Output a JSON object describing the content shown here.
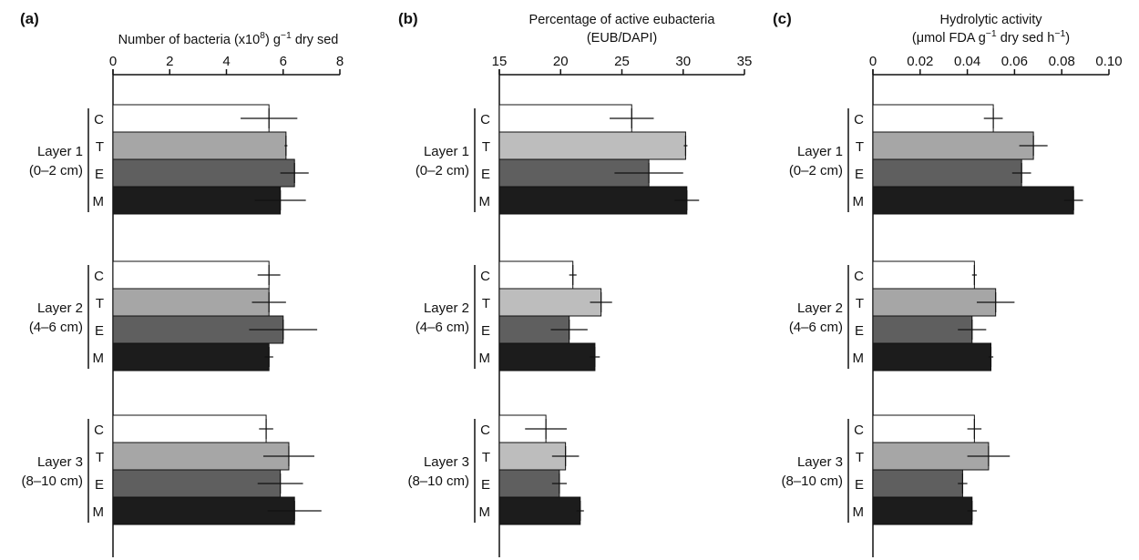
{
  "figure": {
    "layer_labels": [
      [
        "Layer 1",
        "(0–2 cm)"
      ],
      [
        "Layer 2",
        "(4–6 cm)"
      ],
      [
        "Layer 3",
        "(8–10 cm)"
      ]
    ],
    "treatments": [
      "C",
      "T",
      "E",
      "M"
    ],
    "treatment_colors": {
      "C": "#ffffff",
      "T": "#a6a6a6",
      "E": "#5f5f5f",
      "M": "#1c1c1c"
    },
    "treatment_colors_b": {
      "C": "#ffffff",
      "T": "#bdbdbd",
      "E": "#5f5f5f",
      "M": "#1c1c1c"
    }
  },
  "chart_data": [
    {
      "type": "bar",
      "orientation": "horizontal",
      "panel_label": "(a)",
      "title_lines": [
        "Number of bacteria (x10^8) g^−1 dry sed"
      ],
      "xlim": [
        0,
        8
      ],
      "ticks": [
        0,
        2,
        4,
        6,
        8
      ],
      "categories": [
        "Layer 1 C",
        "Layer 1 T",
        "Layer 1 E",
        "Layer 1 M",
        "Layer 2 C",
        "Layer 2 T",
        "Layer 2 E",
        "Layer 2 M",
        "Layer 3 C",
        "Layer 3 T",
        "Layer 3 E",
        "Layer 3 M"
      ],
      "values": [
        5.5,
        6.1,
        6.4,
        5.9,
        5.5,
        5.5,
        6.0,
        5.5,
        5.4,
        6.2,
        5.9,
        6.4
      ],
      "errors": [
        1.0,
        0.05,
        0.5,
        0.9,
        0.4,
        0.6,
        1.2,
        0.15,
        0.25,
        0.9,
        0.8,
        0.95
      ]
    },
    {
      "type": "bar",
      "orientation": "horizontal",
      "panel_label": "(b)",
      "title_lines": [
        "Percentage of active eubacteria",
        "(EUB/DAPI)"
      ],
      "xlim": [
        15,
        35
      ],
      "ticks": [
        15,
        20,
        25,
        30,
        35
      ],
      "categories": [
        "Layer 1 C",
        "Layer 1 T",
        "Layer 1 E",
        "Layer 1 M",
        "Layer 2 C",
        "Layer 2 T",
        "Layer 2 E",
        "Layer 2 M",
        "Layer 3 C",
        "Layer 3 T",
        "Layer 3 E",
        "Layer 3 M"
      ],
      "values": [
        25.8,
        30.2,
        27.2,
        30.3,
        21.0,
        23.3,
        20.7,
        22.8,
        18.8,
        20.4,
        19.9,
        21.6
      ],
      "errors": [
        1.8,
        0.15,
        2.8,
        1.0,
        0.3,
        0.9,
        1.5,
        0.4,
        1.7,
        1.1,
        0.6,
        0.3
      ]
    },
    {
      "type": "bar",
      "orientation": "horizontal",
      "panel_label": "(c)",
      "title_lines": [
        "Hydrolytic activity",
        "(μmol FDA g^−1 dry sed h^−1)"
      ],
      "xlim": [
        0,
        0.1
      ],
      "ticks": [
        0,
        0.02,
        0.04,
        0.06,
        0.08,
        0.1
      ],
      "tick_labels": [
        "0",
        "0.02",
        "0.04",
        "0.06",
        "0.08",
        "0.10"
      ],
      "categories": [
        "Layer 1 C",
        "Layer 1 T",
        "Layer 1 E",
        "Layer 1 M",
        "Layer 2 C",
        "Layer 2 T",
        "Layer 2 E",
        "Layer 2 M",
        "Layer 3 C",
        "Layer 3 T",
        "Layer 3 E",
        "Layer 3 M"
      ],
      "values": [
        0.051,
        0.068,
        0.063,
        0.085,
        0.043,
        0.052,
        0.042,
        0.05,
        0.043,
        0.049,
        0.038,
        0.042
      ],
      "errors": [
        0.004,
        0.006,
        0.004,
        0.004,
        0.001,
        0.008,
        0.006,
        0.001,
        0.003,
        0.009,
        0.002,
        0.002
      ]
    }
  ]
}
